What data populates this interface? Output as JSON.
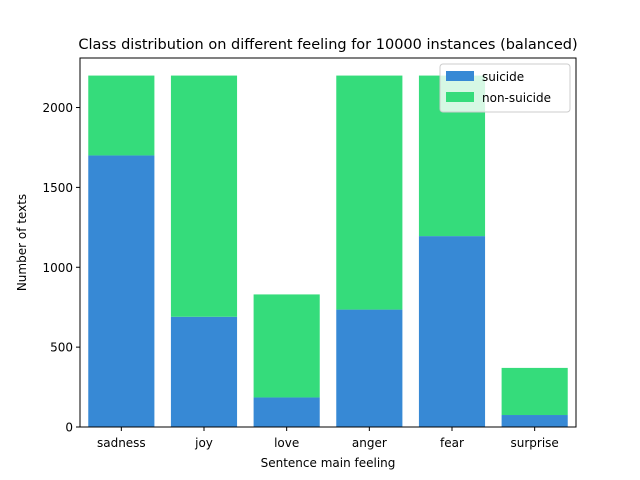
{
  "chart_data": {
    "type": "bar",
    "stacked": true,
    "title": "Class distribution on different feeling for 10000 instances (balanced)",
    "xlabel": "Sentence main feeling",
    "ylabel": "Number of texts",
    "categories": [
      "sadness",
      "joy",
      "love",
      "anger",
      "fear",
      "surprise"
    ],
    "series": [
      {
        "name": "suicide",
        "color": "#3789d5",
        "values": [
          1700,
          690,
          185,
          735,
          1195,
          75
        ]
      },
      {
        "name": "non-suicide",
        "color": "#35dc7b",
        "values": [
          500,
          1510,
          645,
          1465,
          1005,
          295
        ]
      }
    ],
    "ylim": [
      0,
      2310
    ],
    "yticks": [
      0,
      500,
      1000,
      1500,
      2000
    ],
    "grid": false,
    "legend_position": "top-right"
  }
}
